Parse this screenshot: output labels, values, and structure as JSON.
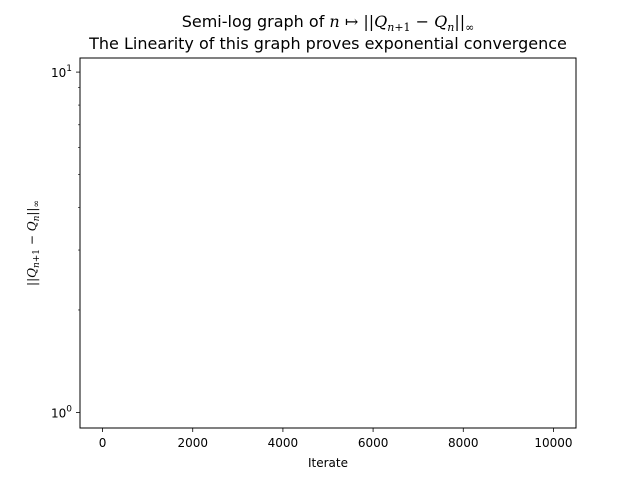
{
  "chart_data": {
    "type": "line",
    "title_prefix": "Semi-log graph of ",
    "title_math": "n ↦ ||Q_{n+1} − Q_n||_∞",
    "subtitle": "The Linearity of this graph proves exponential convergence",
    "xlabel": "Iterate",
    "ylabel": "||Q_{n+1} − Q_n||_∞",
    "yscale": "log",
    "xlim": [
      -500,
      10500
    ],
    "ylim": [
      0.9,
      11
    ],
    "xticks": [
      0,
      2000,
      4000,
      6000,
      8000,
      10000
    ],
    "xtick_labels": [
      "0",
      "2000",
      "4000",
      "6000",
      "8000",
      "10000"
    ],
    "yticks": [
      1,
      10
    ],
    "ytick_labels": [
      {
        "base": "10",
        "exp": "0"
      },
      {
        "base": "10",
        "exp": "1"
      }
    ],
    "grid": false,
    "legend": "none",
    "series": [
      {
        "x": [],
        "y": [],
        "color": "#1f77b4"
      }
    ]
  }
}
